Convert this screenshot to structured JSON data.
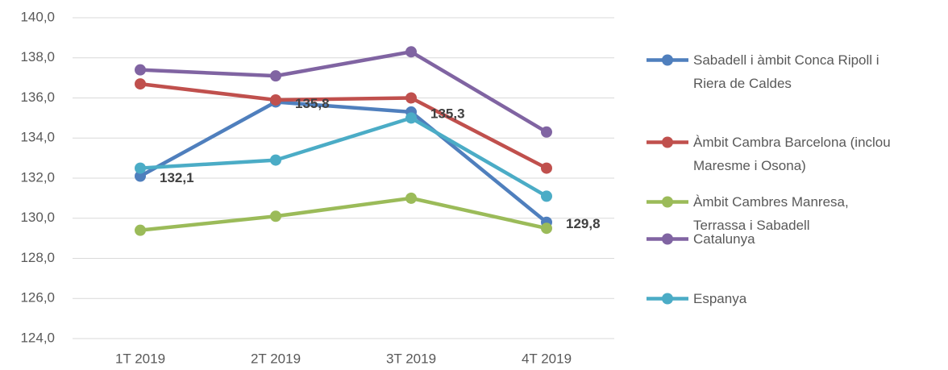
{
  "chart_data": {
    "type": "line",
    "categories": [
      "1T 2019",
      "2T 2019",
      "3T 2019",
      "4T 2019"
    ],
    "ylim": [
      124,
      140
    ],
    "yticks": [
      {
        "value": 124,
        "label": "124,0"
      },
      {
        "value": 126,
        "label": "126,0"
      },
      {
        "value": 128,
        "label": "128,0"
      },
      {
        "value": 130,
        "label": "130,0"
      },
      {
        "value": 132,
        "label": "132,0"
      },
      {
        "value": 134,
        "label": "134,0"
      },
      {
        "value": 136,
        "label": "136,0"
      },
      {
        "value": 138,
        "label": "138,0"
      },
      {
        "value": 140,
        "label": "140,0"
      }
    ],
    "grid": true,
    "legend": "right",
    "series": [
      {
        "name": "Sabadell i àmbit Conca Ripoll i Riera de Caldes",
        "color": "#4f7fbd",
        "values": [
          132.1,
          135.8,
          135.3,
          129.8
        ],
        "value_labels": [
          "132,1",
          "135,8",
          "135,3",
          "129,8"
        ]
      },
      {
        "name": "Àmbit Cambra Barcelona (inclou Maresme i Osona)",
        "color": "#c0504d",
        "values": [
          136.7,
          135.9,
          136.0,
          132.5
        ]
      },
      {
        "name": "Àmbit Cambres Manresa, Terrassa i Sabadell",
        "color": "#9bbb59",
        "values": [
          129.4,
          130.1,
          131.0,
          129.5
        ]
      },
      {
        "name": "Catalunya",
        "color": "#8064a2",
        "values": [
          137.4,
          137.1,
          138.3,
          134.3
        ]
      },
      {
        "name": "Espanya",
        "color": "#4bacc6",
        "values": [
          132.5,
          132.9,
          135.0,
          131.1
        ]
      }
    ]
  }
}
